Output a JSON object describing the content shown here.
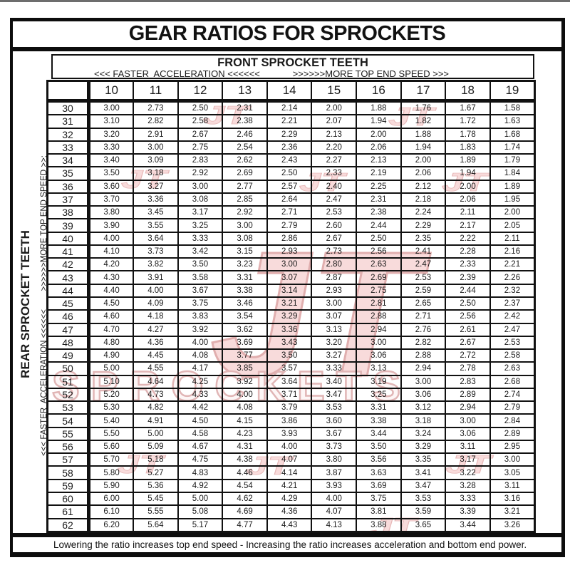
{
  "page": {
    "title": "GEAR RATIOS FOR SPROCKETS",
    "footer": "Lowering the ratio increases top end speed - Increasing the ratio increases acceleration and bottom end power."
  },
  "table": {
    "front_header": "FRONT SPROCKET TEETH",
    "front_acceleration_label": "<<< FASTER  ACCELERATION <<<<<<",
    "front_speed_label": ">>>>>>MORE TOP END SPEED >>>",
    "rear_header": "REAR SPROCKET TEETH",
    "rear_direction_label": "<<< FASTER  ACCELERATION <<<<<<        >>>>>>MORE TOP END SPEED >>:",
    "front_teeth": [
      "10",
      "11",
      "12",
      "13",
      "14",
      "15",
      "16",
      "17",
      "18",
      "19"
    ],
    "rows": [
      {
        "rear": "30",
        "ratios": [
          "3.00",
          "2.73",
          "2.50",
          "2.31",
          "2.14",
          "2.00",
          "1.88",
          "1.76",
          "1.67",
          "1.58"
        ]
      },
      {
        "rear": "31",
        "ratios": [
          "3.10",
          "2.82",
          "2.58",
          "2.38",
          "2.21",
          "2.07",
          "1.94",
          "1.82",
          "1.72",
          "1.63"
        ]
      },
      {
        "rear": "32",
        "ratios": [
          "3.20",
          "2.91",
          "2.67",
          "2.46",
          "2.29",
          "2.13",
          "2.00",
          "1.88",
          "1.78",
          "1.68"
        ]
      },
      {
        "rear": "33",
        "ratios": [
          "3.30",
          "3.00",
          "2.75",
          "2.54",
          "2.36",
          "2.20",
          "2.06",
          "1.94",
          "1.83",
          "1.74"
        ]
      },
      {
        "rear": "34",
        "ratios": [
          "3.40",
          "3.09",
          "2.83",
          "2.62",
          "2.43",
          "2.27",
          "2.13",
          "2.00",
          "1.89",
          "1.79"
        ]
      },
      {
        "rear": "35",
        "ratios": [
          "3.50",
          "3.18",
          "2.92",
          "2.69",
          "2.50",
          "2.33",
          "2.19",
          "2.06",
          "1.94",
          "1.84"
        ]
      },
      {
        "rear": "36",
        "ratios": [
          "3.60",
          "3.27",
          "3.00",
          "2.77",
          "2.57",
          "2.40",
          "2.25",
          "2.12",
          "2.00",
          "1.89"
        ]
      },
      {
        "rear": "37",
        "ratios": [
          "3.70",
          "3.36",
          "3.08",
          "2.85",
          "2.64",
          "2.47",
          "2.31",
          "2.18",
          "2.06",
          "1.95"
        ]
      },
      {
        "rear": "38",
        "ratios": [
          "3.80",
          "3.45",
          "3.17",
          "2.92",
          "2.71",
          "2.53",
          "2.38",
          "2.24",
          "2.11",
          "2.00"
        ]
      },
      {
        "rear": "39",
        "ratios": [
          "3.90",
          "3.55",
          "3.25",
          "3.00",
          "2.79",
          "2.60",
          "2.44",
          "2.29",
          "2.17",
          "2.05"
        ]
      },
      {
        "rear": "40",
        "ratios": [
          "4.00",
          "3.64",
          "3.33",
          "3.08",
          "2.86",
          "2.67",
          "2.50",
          "2.35",
          "2.22",
          "2.11"
        ]
      },
      {
        "rear": "41",
        "ratios": [
          "4.10",
          "3.73",
          "3.42",
          "3.15",
          "2.93",
          "2.73",
          "2.56",
          "2.41",
          "2.28",
          "2.16"
        ]
      },
      {
        "rear": "42",
        "ratios": [
          "4.20",
          "3.82",
          "3.50",
          "3.23",
          "3.00",
          "2.80",
          "2.63",
          "2.47",
          "2.33",
          "2.21"
        ]
      },
      {
        "rear": "43",
        "ratios": [
          "4.30",
          "3.91",
          "3.58",
          "3.31",
          "3.07",
          "2.87",
          "2.69",
          "2.53",
          "2.39",
          "2.26"
        ]
      },
      {
        "rear": "44",
        "ratios": [
          "4.40",
          "4.00",
          "3.67",
          "3.38",
          "3.14",
          "2.93",
          "2.75",
          "2.59",
          "2.44",
          "2.32"
        ]
      },
      {
        "rear": "45",
        "ratios": [
          "4.50",
          "4.09",
          "3.75",
          "3.46",
          "3.21",
          "3.00",
          "2.81",
          "2.65",
          "2.50",
          "2.37"
        ]
      },
      {
        "rear": "46",
        "ratios": [
          "4.60",
          "4.18",
          "3.83",
          "3.54",
          "3.29",
          "3.07",
          "2.88",
          "2.71",
          "2.56",
          "2.42"
        ]
      },
      {
        "rear": "47",
        "ratios": [
          "4.70",
          "4.27",
          "3.92",
          "3.62",
          "3.36",
          "3.13",
          "2.94",
          "2.76",
          "2.61",
          "2.47"
        ]
      },
      {
        "rear": "48",
        "ratios": [
          "4.80",
          "4.36",
          "4.00",
          "3.69",
          "3.43",
          "3.20",
          "3.00",
          "2.82",
          "2.67",
          "2.53"
        ]
      },
      {
        "rear": "49",
        "ratios": [
          "4.90",
          "4.45",
          "4.08",
          "3.77",
          "3.50",
          "3.27",
          "3.06",
          "2.88",
          "2.72",
          "2.58"
        ]
      },
      {
        "rear": "50",
        "ratios": [
          "5.00",
          "4.55",
          "4.17",
          "3.85",
          "3.57",
          "3.33",
          "3.13",
          "2.94",
          "2.78",
          "2.63"
        ]
      },
      {
        "rear": "51",
        "ratios": [
          "5.10",
          "4.64",
          "4.25",
          "3.92",
          "3.64",
          "3.40",
          "3.19",
          "3.00",
          "2.83",
          "2.68"
        ]
      },
      {
        "rear": "52",
        "ratios": [
          "5.20",
          "4.73",
          "4.33",
          "4.00",
          "3.71",
          "3.47",
          "3.25",
          "3.06",
          "2.89",
          "2.74"
        ]
      },
      {
        "rear": "53",
        "ratios": [
          "5.30",
          "4.82",
          "4.42",
          "4.08",
          "3.79",
          "3.53",
          "3.31",
          "3.12",
          "2.94",
          "2.79"
        ]
      },
      {
        "rear": "54",
        "ratios": [
          "5.40",
          "4.91",
          "4.50",
          "4.15",
          "3.86",
          "3.60",
          "3.38",
          "3.18",
          "3.00",
          "2.84"
        ]
      },
      {
        "rear": "55",
        "ratios": [
          "5.50",
          "5.00",
          "4.58",
          "4.23",
          "3.93",
          "3.67",
          "3.44",
          "3.24",
          "3.06",
          "2.89"
        ]
      },
      {
        "rear": "56",
        "ratios": [
          "5.60",
          "5.09",
          "4.67",
          "4.31",
          "4.00",
          "3.73",
          "3.50",
          "3.29",
          "3.11",
          "2.95"
        ]
      },
      {
        "rear": "57",
        "ratios": [
          "5.70",
          "5.18",
          "4.75",
          "4.38",
          "4.07",
          "3.80",
          "3.56",
          "3.35",
          "3.17",
          "3.00"
        ]
      },
      {
        "rear": "58",
        "ratios": [
          "5.80",
          "5.27",
          "4.83",
          "4.46",
          "4.14",
          "3.87",
          "3.63",
          "3.41",
          "3.22",
          "3.05"
        ]
      },
      {
        "rear": "59",
        "ratios": [
          "5.90",
          "5.36",
          "4.92",
          "4.54",
          "4.21",
          "3.93",
          "3.69",
          "3.47",
          "3.28",
          "3.11"
        ]
      },
      {
        "rear": "60",
        "ratios": [
          "6.00",
          "5.45",
          "5.00",
          "4.62",
          "4.29",
          "4.00",
          "3.75",
          "3.53",
          "3.33",
          "3.16"
        ]
      },
      {
        "rear": "61",
        "ratios": [
          "6.10",
          "5.55",
          "5.08",
          "4.69",
          "4.36",
          "4.07",
          "3.81",
          "3.59",
          "3.39",
          "3.21"
        ]
      },
      {
        "rear": "62",
        "ratios": [
          "6.20",
          "5.64",
          "5.17",
          "4.77",
          "4.43",
          "4.13",
          "3.88",
          "3.65",
          "3.44",
          "3.26"
        ]
      }
    ]
  },
  "watermark": {
    "logo_text": "JT",
    "brand_text": "SPROCKETS",
    "fill_color": "#f5c6c6",
    "edge_color": "#cf7f7f",
    "light_fill_color": "#fdf2f2"
  }
}
